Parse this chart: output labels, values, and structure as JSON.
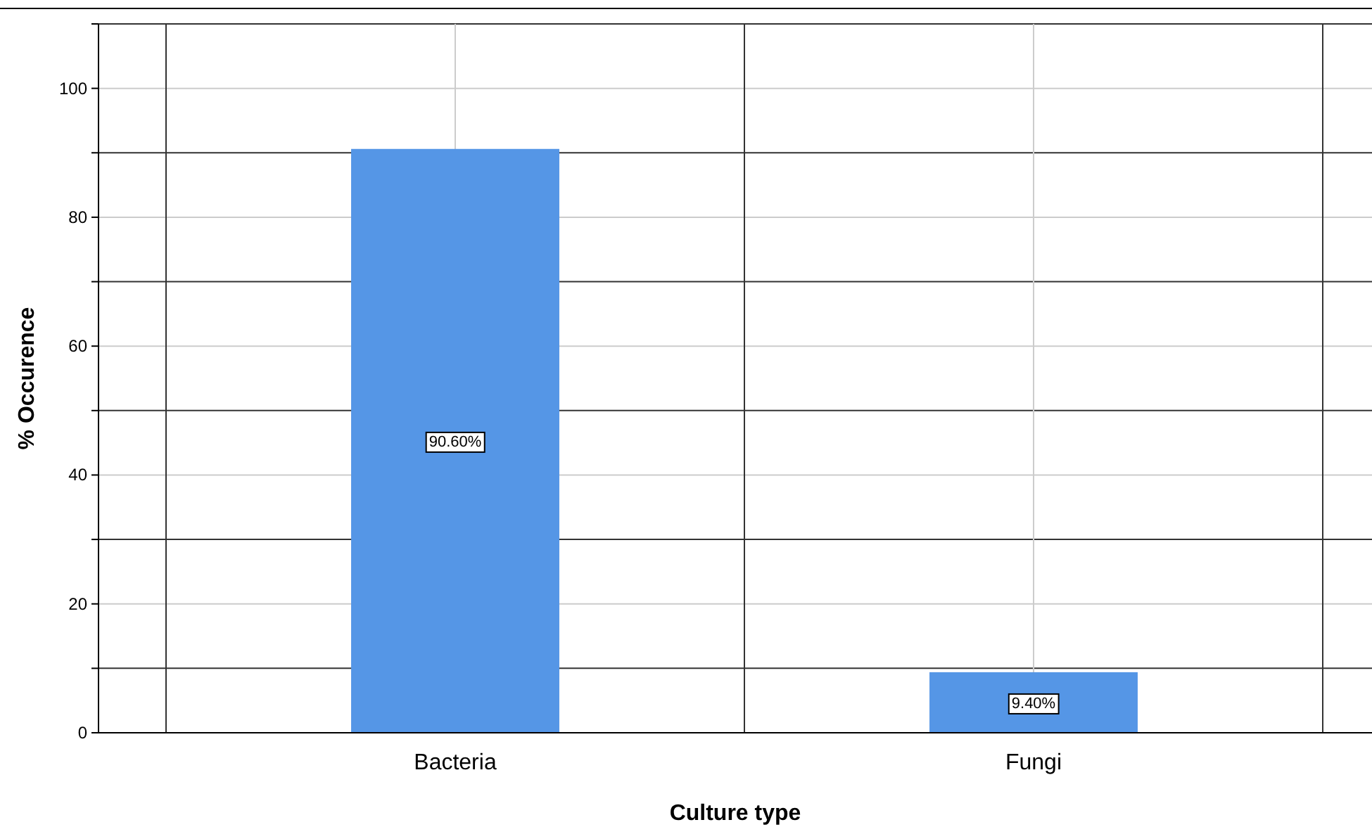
{
  "chart_data": {
    "type": "bar",
    "xlabel": "Culture type",
    "ylabel": "% Occurence",
    "categories": [
      "Bacteria",
      "Fungi"
    ],
    "values": [
      90.6,
      9.4
    ],
    "color": "#5596e6",
    "value_labels": [
      "90.60%",
      "9.40%"
    ],
    "ylim": [
      0,
      110
    ],
    "yticks": [
      0,
      {
        "value": 10,
        "label": null
      },
      20,
      {
        "value": 30,
        "label": null
      },
      40,
      {
        "value": 50,
        "label": null
      },
      60,
      {
        "value": 70,
        "label": null
      },
      80,
      {
        "value": 90,
        "label": null
      },
      100,
      {
        "value": 110,
        "label": null
      }
    ],
    "grid": true
  }
}
